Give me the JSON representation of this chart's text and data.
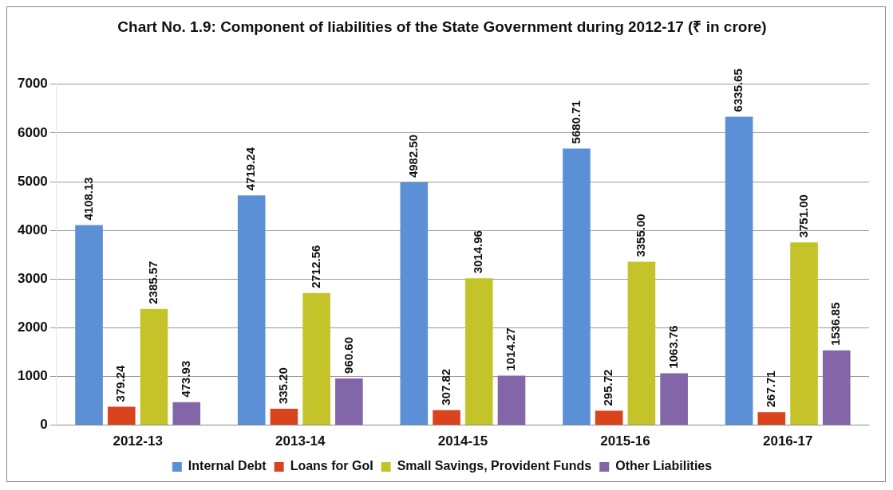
{
  "chart_data": {
    "type": "bar",
    "title": "Chart No. 1.9: Component of liabilities of the State Government during 2012-17 (₹ in crore)",
    "categories": [
      "2012-13",
      "2013-14",
      "2014-15",
      "2015-16",
      "2016-17"
    ],
    "series": [
      {
        "name": "Internal Debt",
        "color": "#5b8fd6",
        "values": [
          4108.13,
          4719.24,
          4982.5,
          5680.71,
          6335.65
        ]
      },
      {
        "name": "Loans for GoI",
        "color": "#d9441c",
        "values": [
          379.24,
          335.2,
          307.82,
          295.72,
          267.71
        ]
      },
      {
        "name": "Small Savings, Provident Funds",
        "color": "#c4c42a",
        "values": [
          2385.57,
          2712.56,
          3014.96,
          3355.0,
          3751.0
        ]
      },
      {
        "name": "Other Liabilities",
        "color": "#8366a8",
        "values": [
          473.93,
          960.6,
          1014.27,
          1063.76,
          1536.85
        ]
      }
    ],
    "value_labels": [
      [
        "4108.13",
        "4719.24",
        "4982.50",
        "5680.71",
        "6335.65"
      ],
      [
        "379.24",
        "335.20",
        "307.82",
        "295.72",
        "267.71"
      ],
      [
        "2385.57",
        "2712.56",
        "3014.96",
        "3355.00",
        "3751.00"
      ],
      [
        "473.93",
        "960.60",
        "1014.27",
        "1063.76",
        "1536.85"
      ]
    ],
    "ylim": [
      0,
      7000
    ],
    "yticks": [
      0,
      1000,
      2000,
      3000,
      4000,
      5000,
      6000,
      7000
    ],
    "grid": "y",
    "legend": "bottom"
  }
}
